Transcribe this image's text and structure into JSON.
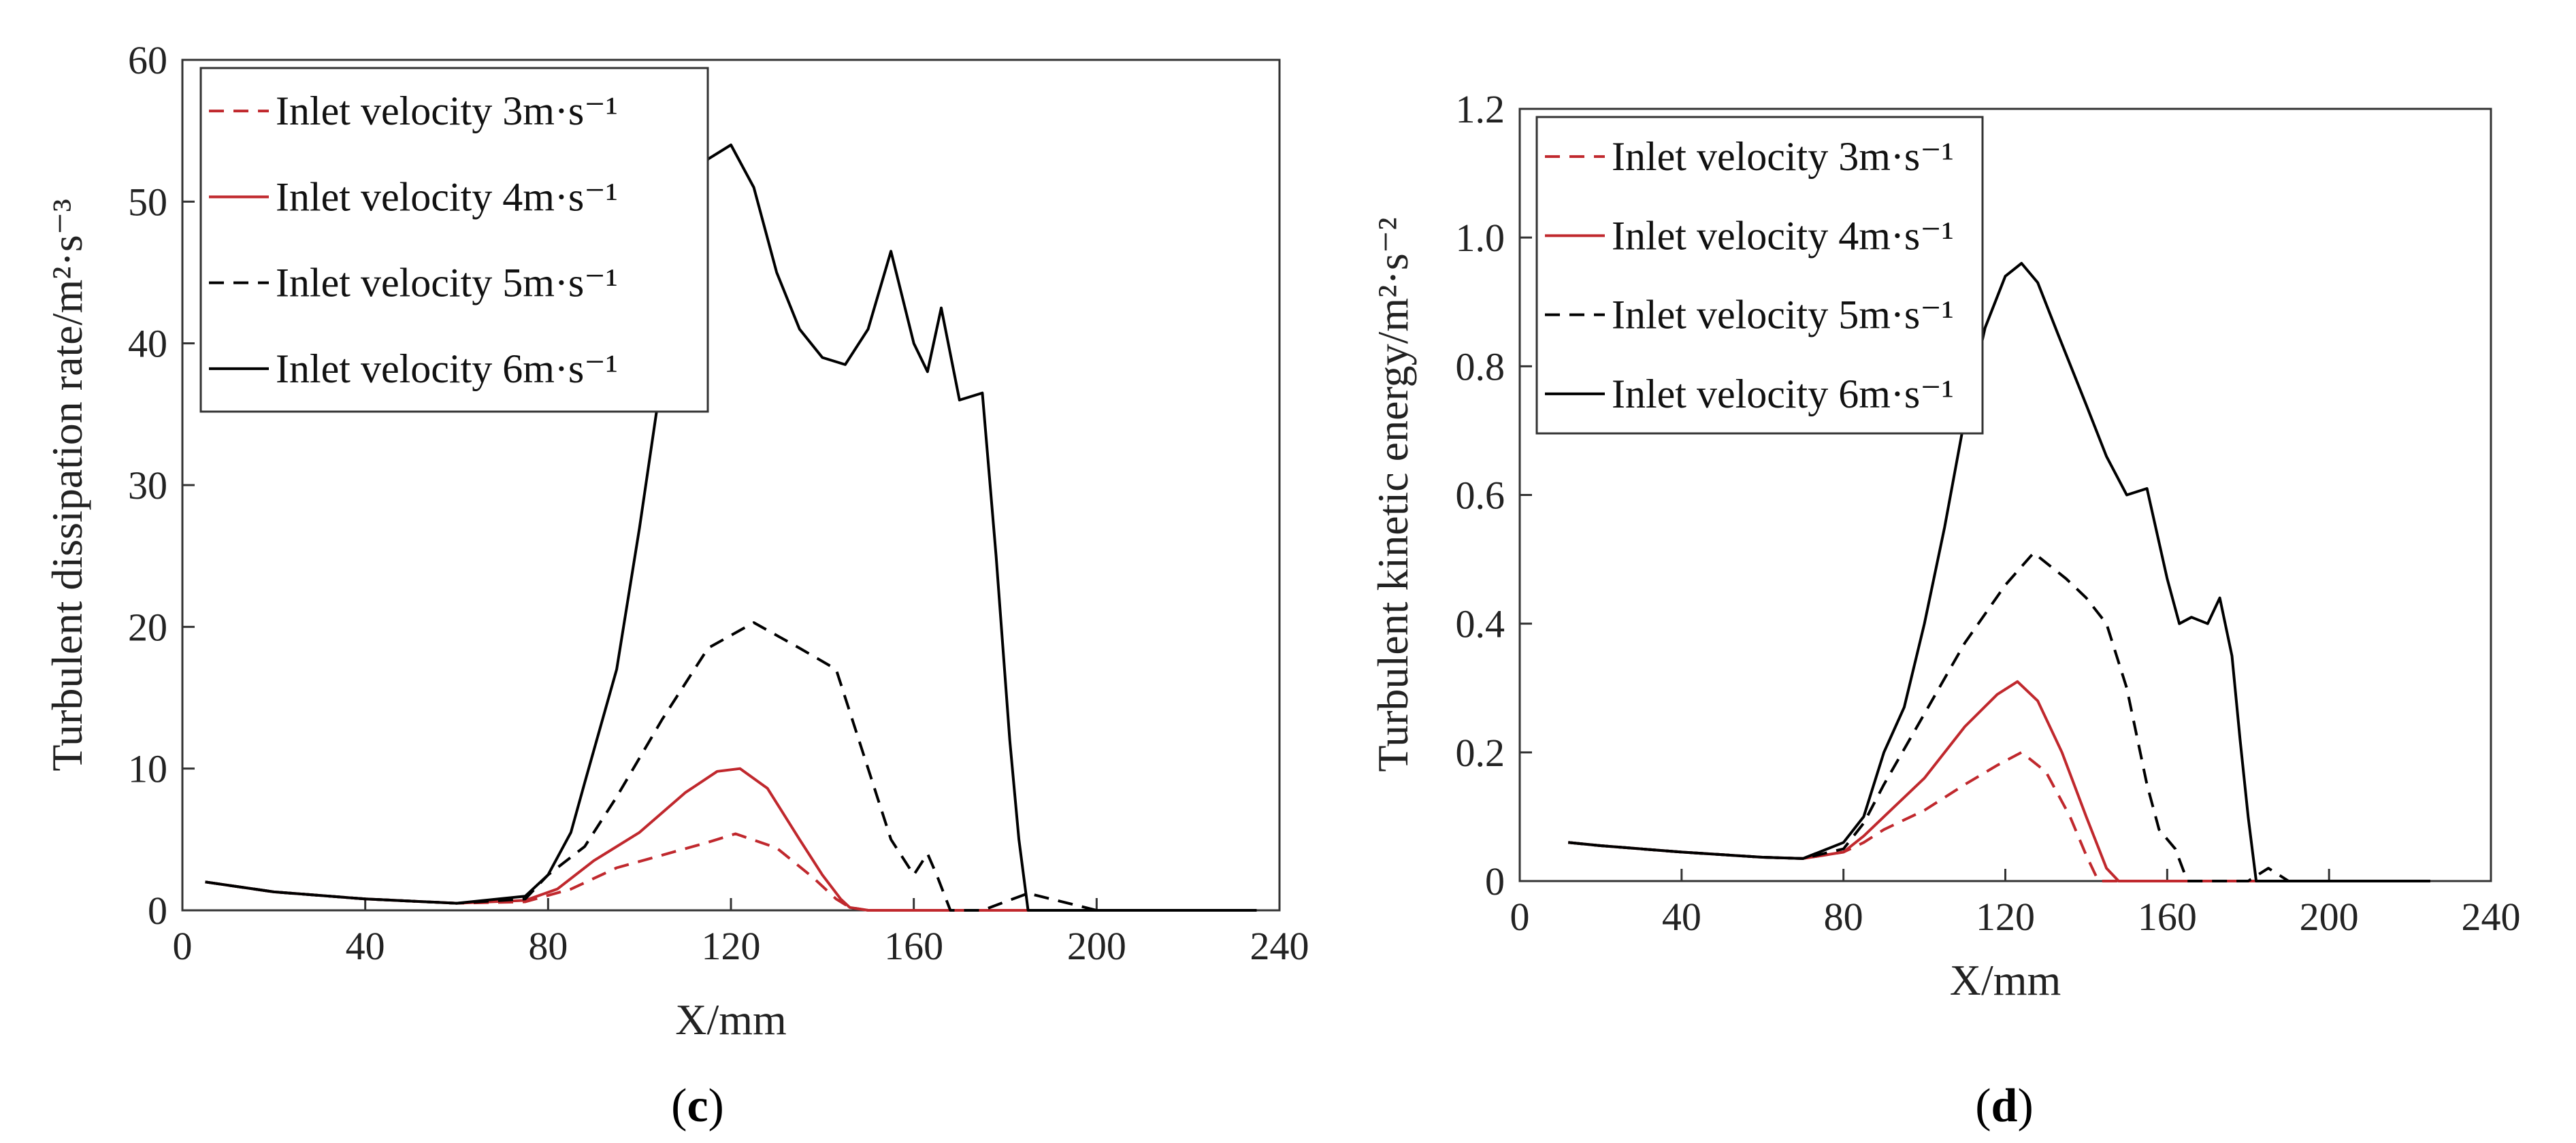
{
  "chart_data": [
    {
      "type": "line",
      "panel": "(c)",
      "caption_letter": "c",
      "xlabel": "X/mm",
      "ylabel": "Turbulent dissipation rate/m²·s⁻³",
      "xlim": [
        0,
        240
      ],
      "ylim": [
        0,
        60
      ],
      "xticks": [
        "0",
        "40",
        "80",
        "120",
        "160",
        "200",
        "240"
      ],
      "yticks": [
        "0",
        "10",
        "20",
        "30",
        "40",
        "50",
        "60"
      ],
      "grid": false,
      "legend_position": "top-left",
      "series": [
        {
          "name": "Inlet velocity 3m·s⁻¹",
          "color": "#c0282d",
          "style": "dashed",
          "x": [
            5,
            20,
            40,
            60,
            75,
            85,
            95,
            105,
            115,
            121,
            130,
            138,
            143,
            146,
            150,
            235
          ],
          "y": [
            2.0,
            1.3,
            0.8,
            0.5,
            0.6,
            1.5,
            3.0,
            3.9,
            4.8,
            5.4,
            4.4,
            2.3,
            0.8,
            0.2,
            0,
            0
          ]
        },
        {
          "name": "Inlet velocity 4m·s⁻¹",
          "color": "#c0282d",
          "style": "solid",
          "x": [
            5,
            20,
            40,
            60,
            75,
            82,
            90,
            100,
            110,
            117,
            122,
            128,
            135,
            140,
            144,
            146,
            150,
            235
          ],
          "y": [
            2.0,
            1.3,
            0.8,
            0.5,
            0.7,
            1.5,
            3.5,
            5.5,
            8.3,
            9.8,
            10.0,
            8.6,
            5.0,
            2.5,
            0.8,
            0.2,
            0,
            0
          ]
        },
        {
          "name": "Inlet velocity 5m·s⁻¹",
          "color": "#000000",
          "style": "dashed",
          "x": [
            5,
            20,
            40,
            60,
            75,
            80,
            88,
            95,
            105,
            115,
            125,
            135,
            143,
            148,
            155,
            160,
            163,
            165,
            168,
            175,
            185,
            190,
            200,
            235
          ],
          "y": [
            2.0,
            1.3,
            0.8,
            0.5,
            0.8,
            2.5,
            4.5,
            8.0,
            13.5,
            18.5,
            20.3,
            18.5,
            17.0,
            12.0,
            5.0,
            2.5,
            4.0,
            2.5,
            0,
            0,
            1.2,
            0.8,
            0,
            0
          ]
        },
        {
          "name": "Inlet velocity 6m·s⁻¹",
          "color": "#000000",
          "style": "solid",
          "x": [
            5,
            20,
            40,
            60,
            75,
            80,
            85,
            88,
            95,
            100,
            105,
            110,
            115,
            120,
            125,
            130,
            135,
            140,
            145,
            150,
            155,
            160,
            163,
            166,
            170,
            175,
            178,
            181,
            183,
            185,
            200,
            235
          ],
          "y": [
            2.0,
            1.3,
            0.8,
            0.5,
            1.0,
            2.5,
            5.5,
            9.0,
            17.0,
            27.0,
            38.0,
            49.0,
            53.0,
            54.0,
            51.0,
            45.0,
            41.0,
            39.0,
            38.5,
            41.0,
            46.5,
            40.0,
            38.0,
            42.5,
            36.0,
            36.5,
            25.0,
            12.0,
            5.0,
            0,
            0,
            0
          ]
        }
      ]
    },
    {
      "type": "line",
      "panel": "(d)",
      "caption_letter": "d",
      "xlabel": "X/mm",
      "ylabel": "Turbulent kinetic energy/m²·s⁻²",
      "xlim": [
        0,
        240
      ],
      "ylim": [
        0,
        1.2
      ],
      "xticks": [
        "0",
        "40",
        "80",
        "120",
        "160",
        "200",
        "240"
      ],
      "yticks": [
        "0",
        "0.2",
        "0.4",
        "0.6",
        "0.8",
        "1.0",
        "1.2"
      ],
      "grid": false,
      "legend_position": "top-left",
      "series": [
        {
          "name": "Inlet velocity 3m·s⁻¹",
          "color": "#c0282d",
          "style": "dashed",
          "x": [
            12,
            20,
            40,
            60,
            70,
            80,
            85,
            90,
            100,
            110,
            118,
            124,
            130,
            136,
            140,
            143,
            150,
            225
          ],
          "y": [
            0.06,
            0.055,
            0.045,
            0.037,
            0.035,
            0.045,
            0.06,
            0.08,
            0.11,
            0.15,
            0.18,
            0.2,
            0.17,
            0.1,
            0.04,
            0,
            0,
            0
          ]
        },
        {
          "name": "Inlet velocity 4m·s⁻¹",
          "color": "#c0282d",
          "style": "solid",
          "x": [
            12,
            20,
            40,
            60,
            70,
            80,
            85,
            90,
            100,
            110,
            118,
            123,
            128,
            134,
            140,
            145,
            148,
            150,
            225
          ],
          "y": [
            0.06,
            0.055,
            0.045,
            0.037,
            0.035,
            0.045,
            0.07,
            0.1,
            0.16,
            0.24,
            0.29,
            0.31,
            0.28,
            0.2,
            0.1,
            0.02,
            0,
            0,
            0
          ]
        },
        {
          "name": "Inlet velocity 5m·s⁻¹",
          "color": "#000000",
          "style": "dashed",
          "x": [
            12,
            20,
            40,
            60,
            70,
            80,
            85,
            90,
            100,
            110,
            120,
            127,
            135,
            140,
            145,
            150,
            155,
            158,
            162,
            165,
            170,
            180,
            185,
            190,
            225
          ],
          "y": [
            0.06,
            0.055,
            0.045,
            0.037,
            0.035,
            0.05,
            0.09,
            0.15,
            0.26,
            0.37,
            0.46,
            0.51,
            0.47,
            0.44,
            0.4,
            0.3,
            0.15,
            0.08,
            0.05,
            0,
            0,
            0,
            0.02,
            0,
            0
          ]
        },
        {
          "name": "Inlet velocity 6m·s⁻¹",
          "color": "#000000",
          "style": "solid",
          "x": [
            12,
            20,
            40,
            60,
            70,
            80,
            85,
            90,
            95,
            100,
            105,
            110,
            115,
            120,
            124,
            128,
            133,
            140,
            145,
            150,
            155,
            160,
            163,
            166,
            170,
            173,
            176,
            178,
            180,
            182,
            225
          ],
          "y": [
            0.06,
            0.055,
            0.045,
            0.037,
            0.035,
            0.06,
            0.1,
            0.2,
            0.27,
            0.4,
            0.55,
            0.72,
            0.86,
            0.94,
            0.96,
            0.93,
            0.85,
            0.74,
            0.66,
            0.6,
            0.61,
            0.47,
            0.4,
            0.41,
            0.4,
            0.44,
            0.35,
            0.22,
            0.1,
            0,
            0
          ]
        }
      ]
    }
  ]
}
